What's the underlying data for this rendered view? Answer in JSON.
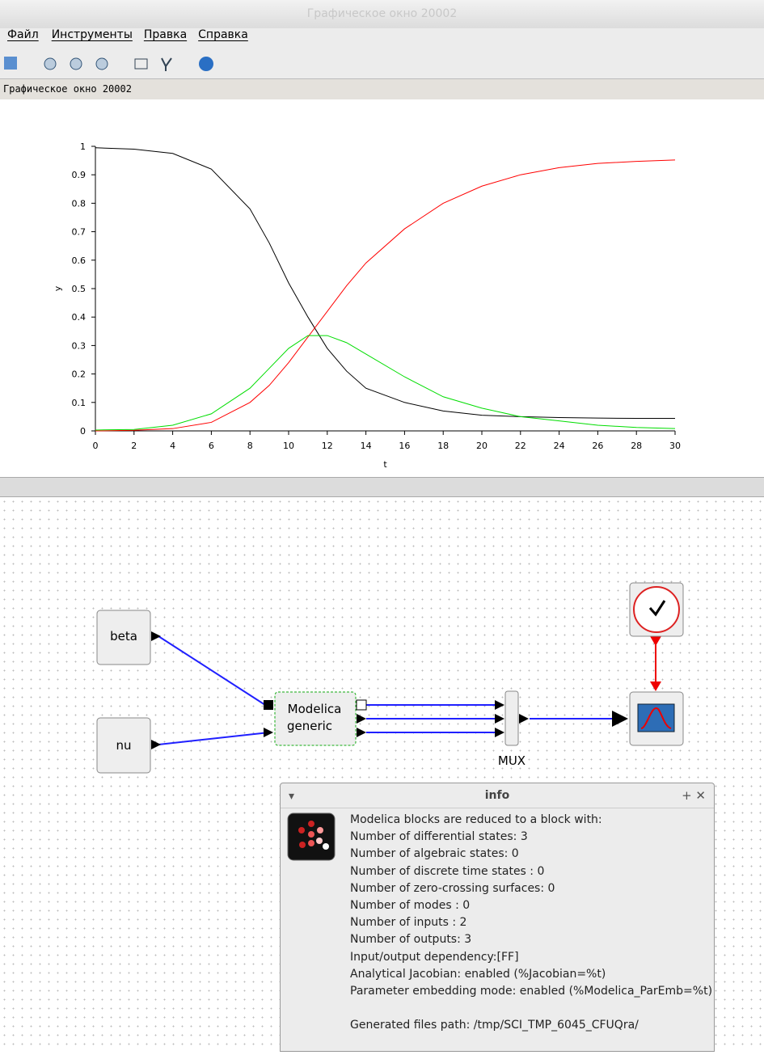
{
  "window": {
    "title": "Графическое окно 20002",
    "menu": [
      "Файл",
      "Инструменты",
      "Правка",
      "Справка"
    ],
    "figure_label": "Графическое окно 20002"
  },
  "chart_data": {
    "type": "line",
    "x_label": "t",
    "y_label": "y",
    "x": [
      0,
      2,
      4,
      6,
      8,
      9,
      10,
      11,
      12,
      13,
      14,
      16,
      18,
      20,
      22,
      24,
      26,
      28,
      30
    ],
    "series": [
      {
        "color": "#000000",
        "values": [
          0.995,
          0.99,
          0.975,
          0.92,
          0.78,
          0.66,
          0.52,
          0.4,
          0.29,
          0.21,
          0.15,
          0.1,
          0.07,
          0.055,
          0.05,
          0.047,
          0.045,
          0.044,
          0.044
        ]
      },
      {
        "color": "#ff0000",
        "values": [
          0,
          0.002,
          0.008,
          0.03,
          0.1,
          0.16,
          0.24,
          0.33,
          0.42,
          0.51,
          0.59,
          0.71,
          0.8,
          0.86,
          0.9,
          0.925,
          0.94,
          0.947,
          0.952
        ]
      },
      {
        "color": "#00dd00",
        "values": [
          0.003,
          0.005,
          0.02,
          0.06,
          0.15,
          0.22,
          0.29,
          0.335,
          0.335,
          0.31,
          0.27,
          0.19,
          0.12,
          0.08,
          0.05,
          0.035,
          0.02,
          0.012,
          0.008
        ]
      }
    ],
    "xlim": [
      0,
      30
    ],
    "xticks": [
      0,
      2,
      4,
      6,
      8,
      10,
      12,
      14,
      16,
      18,
      20,
      22,
      24,
      26,
      28,
      30
    ],
    "ylim": [
      0,
      1
    ],
    "yticks": [
      0,
      0.1,
      0.2,
      0.3,
      0.4,
      0.5,
      0.6,
      0.7,
      0.8,
      0.9,
      1
    ]
  },
  "diagram": {
    "beta": "beta",
    "nu": "nu",
    "modelica": [
      "Modelica",
      "generic"
    ],
    "mux": "MUX"
  },
  "info": {
    "title": "info",
    "lines": [
      "Modelica blocks are reduced to a block with:",
      "Number of differential states: 3",
      "Number of algebraic states: 0",
      "Number of discrete time states : 0",
      "Number of zero-crossing surfaces: 0",
      "Number of modes : 0",
      "Number of inputs : 2",
      "Number of outputs: 3",
      "Input/output dependency:[FF]",
      "Analytical Jacobian: enabled (%Jacobian=%t)",
      "Parameter embedding mode: enabled (%Modelica_ParEmb=%t)",
      "Generated files path: /tmp/SCI_TMP_6045_CFUQra/"
    ]
  }
}
